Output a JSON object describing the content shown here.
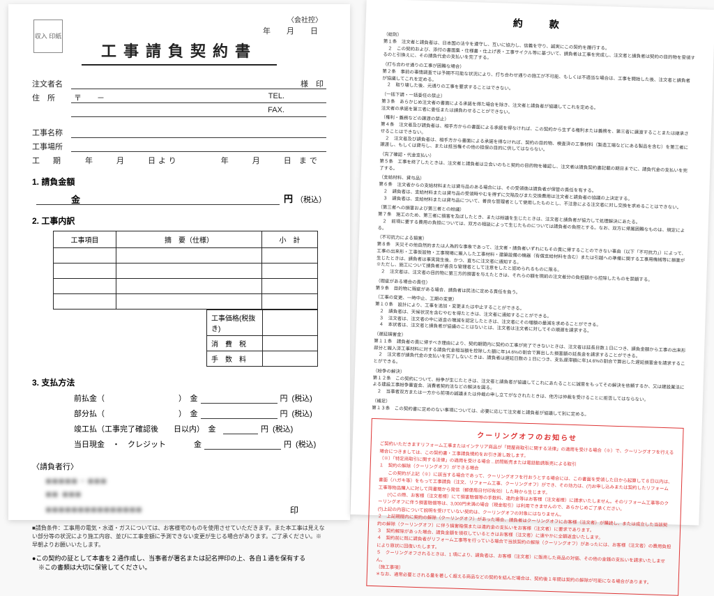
{
  "left": {
    "stamp": "収入\n印紙",
    "company_copy": "〈会社控〉",
    "date_labels": "年　月　日",
    "title": "工事請負契約書",
    "fields": {
      "customer": "注文者名",
      "customer_suffix": "様　印",
      "address": "住　所",
      "postal": "〒　　－",
      "tel": "TEL.",
      "fax": "FAX.",
      "work_name": "工事名称",
      "work_place": "工事場所",
      "period": "工　期",
      "period_text": "年　　月　　日より　　　　年　　月　　日 まで"
    },
    "sections": {
      "s1": "1. 請負金額",
      "kin": "金",
      "yen": "円",
      "tax_in": "（税込）",
      "s2": "2. 工事内訳",
      "table_headers": [
        "工事項目",
        "摘　要（仕様）",
        "小　計"
      ],
      "sub_rows": [
        "工事価格(税抜き)",
        "消　費　税",
        "手　数　料"
      ],
      "s3": "3. 支払方法",
      "pay_items": [
        {
          "label": "前払金（",
          "tail": "）　金",
          "yen": "円",
          "tax": "(税込)"
        },
        {
          "label": "部分払（",
          "tail": "）　金",
          "yen": "円",
          "tax": "(税込)"
        },
        {
          "label": "竣工払（工事完了確認後　　日以内）　金",
          "tail": "",
          "yen": "円",
          "tax": "(税込)"
        },
        {
          "label": "当日現金　・　クレジット",
          "tail": "　　金",
          "yen": "円",
          "tax": "(税込)"
        }
      ]
    },
    "contractor": "〈請負者行〉",
    "blur_lines": [
      "■■■■■・■■■",
      "■■ ■■■",
      "■■■■■■■■■■■■■■■"
    ],
    "seal": "印",
    "note": "■請負条件：工事用の電気・水道・ガスについては、お客様宅のものを使用させていただきます。また本工事は見えない部分等の状況により施工内容、並びに工事金額に予測できない変更が生じる場合があります。ご了承ください。※早朝よりお願いいたします。",
    "bullet": "●この契約の証として本書を２通作成し、当事者が署名または記名押印の上、各自１通を保有する\n　※この書類は大切に保管してください。"
  },
  "right": {
    "title": "約　款",
    "clauses": [
      "（総則）\n第１条　注文者と請負者は、日本国の法令を遵守し、互いに協力し、信義を守り、誠実にこの契約を履行する。\n　２　この契約および、添付の書面集・仕様書・仕上げ表・工事サイクル等に基づいて、請負者は工事を完成し、注文者と請負者は契約の目的物を受領するのと引換えに、その請負代金の支払いを完了する。",
      "（打ち合わせ通りの工事が困難な場合）\n第２条　事前の事情調査では予期不可能な状況により、打ち合わせ通りの施工が不可能、もしくは不適当な場合は、工事を開始した後、注文者と請負者が協議してこれを定める。\n　２　取り壊した後、元通りの工事を要求することはできない。",
      "（一括下請・一括委任の禁止）\n第３条　あらかじめ注文者の書面による承諾を得た場合を除き、注文者と請負者が協議してこれを定める。\n注文者の承諾を第三者に委任または請負わせることができない。",
      "（権利・義務などの譲渡の禁止）\n第４条　注文者及び請負者は、相手方からの書面による承諾を得なければ、この契約から生ずる権利または義務を、第三者に譲渡することまたは継承させることはできない。\n　２　注文者及び請負者は、相手方から書面による承諾を得なければ、契約の目的物、検査済の工事材料（製造工場などにある製品を含む）を第三者に譲渡し、もしくは貸与し、または抵当権その他の担保の目的に供してはならない。",
      "（完了確認・代金支払い）\n第５条　工事を終了したときは、注文者と請負者は立会いのもと契約の目的物を確認し、注文者は請負契約書記載の期日までに、請負代金の支払いを完了する。",
      "（支給材料、貸与品）\n第６条　注文者からの支給材料または貸与品のある場合には、その受領後は請負者が保管の責任を有する。\n　２　請負者は、支給材料または貸与品の受領時やむを得ずに欠陥及びまた交換費用は注文者と請負者の協議の上決定する。\n　３　請負者は、支給材料または貸与品について、善良な管理者として使用したものとし、不注意による注文者に対し交換を求めることはできない。",
      "（第三者への損害および第三者との紛議）\n第７条　施工のため、第三者に損害を及ぼしたとき、または紛議を生じたときは、注文者と請負者が協力して処理解決にあたる。\n　２　前項に要する費用の負担については、双方の相談によって生じたものについては請負者の負担とする。なお、双方に帰属困難なものは、規定による。",
      "（不可抗力による損害）\n第８条　天災その他自然的または人為的な事象であって、注文者・請負者いずれにもその責に帰することのできない事由（以下「不可抗力」）によって、工事の出来形・工事仮設物・工事現場に搬入した工事材料・建築設備の機器（有償支給材料を含む）または引越への準備に関する工事用機械等に損害が生じたときは、請負者は事実発生後、かつ、直ちに注文者に通知する。\n※ただし、施工について請負者が善良な管理者として注意をしたと認められるものに限る。\n　２　注文者は、注文者の目的物に第三方的損害を与えたときは、それらの額を現前の注文者分の負担額から控除したものを禁額する。",
      "（瑕疵がある場合の責任）\n第９条　目的物に瑕疵がある場合、請負者は民法に定める責任を負う。",
      "（工事の変更、一時中止、工期の変更）\n第１０条　設計により、工事を追加・変更または中止することができる。\n　２　請負者は、天候状況を含むやむを得たときは、注文者に通知することができる。\n　３　注文者は、注文者の中に返金の増減を認定したときは、注文者にその増額の最減を求めることができる。\n　４　本状者は、注文者と請負者が協議のことはないとは、注文者は注文者に対してその順遅を請求する。",
      "（遅延損害金）\n第１１条　請負者の責に帰すべき理由により、契約期間内に契約の工事が完了できないときは、注文者は延長日数１日につき、請負金額から工事の出来形部分と搬入済工事材料に対する請負代金相当額を控除した額に年14.6%の割合で算出した損害額の延長金を請求することができる。\n　２　注文者が請負代金の支払いを完了しないときは、請負者は遅延日数の１日につき、支払遅滞額に年14.6%の割合で算出した遅延損害金を請求することができる。",
      "（紛争の解決）\n第１２条　この契約について、紛争が生じたときは、注文者と請負者が協議してこれにあたることに誠意をもってその解決を依頼するか、又は建設業法による建設工事紛争審査会、消費者契約法などの解決を図る。\n　２　当事者双方または一方から前項の誠議または仲裁の申し立てがなされたときは、他方は仲裁を受けることに拒否してはならない。",
      "（補足）\n第１３条　この契約書に定めのない事項については、必要に応じて注文者と請負者が協議して別に定める。"
    ],
    "cooling": {
      "title": "クーリングオフのお知らせ",
      "lines": [
        "ご契約いただきますリフォーム工事またはインテリア商品が「問屋商取引に関する法律」の適用を受ける場合（※）で、クーリングオフを行える場合につきましては、この契約書・工事請負規約をお引き渡し致します。",
        "（※）「特定商取引に関する法律」の適用を受ける場合…訪問販売または電話勧誘販売による取引",
        "１　契約の解除（クーリングオフ）ができる場合",
        "　　この契約が上記（※）に該当する場合であって、クーリングオフを行おうとする場合には、この書面を受領した日から起算して８日以内は、書面（ハガキ等）をもって工事請負（注文、リフォーム工事、クーリングオフ）ができ、その効力は、(ｱ)お申し込みまたは契約したリフォーム工事等物品購入に対して同書簡から発信（郵便局日付印有効）した時から生じます。",
        "　　(ｲ)この際、お客様（注文者様）にて損害賠償等の手数料、違約金等はお客様（注文者様）に請求いたしません。そのリフォーム工事等のクーリングオフに伴う損害賠償等は、3,000円未満の場合（現金取引）は利用できませんので、あらかじめご了承ください。",
        "(ｳ)上記の内容について説明を受けていない契約は、クーリングオフの対象にはなりません。",
        "２　上記期間内に契約の解除（クーリングオフ）があった場合、請負者はクーリングオフにお客様（注文者）が購読し、または成立した当該契約の解除（クーリングオフ）に伴う損害賠償または違約金の支払いをお客様（注文者）に要求であります。",
        "３　契約解除があった場合、請負金額を領収しているときはお客様（注文者）に速やかに全額返金いたします。",
        "４　契約前に既に請負者がリフォーム工事等を行っている場合で当該契約の解除（クーリングオフ）があったには、お客様（注文者）の費用負担により原状に回復いたします。",
        "５　クーリングオフされるときは、1 項により、請負者は、お客様（注文者）に販売した商品の対価、その他の金銭の支払いを請求いたしません。",
        "〔施工事項〕",
        "＊なお、通常必要とされる量を著しく超える商品などの契約を結んだ場合は、契約後１年間は契約の解除が可能になる場合があります。"
      ]
    }
  }
}
